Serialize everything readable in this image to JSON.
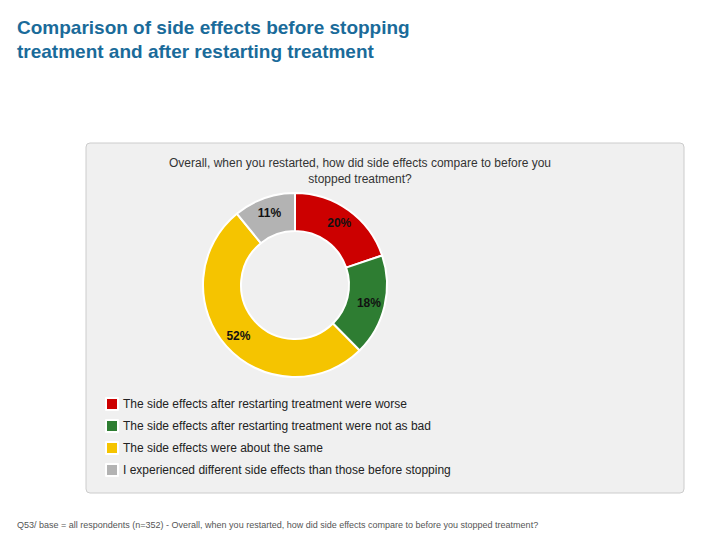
{
  "chart_data": {
    "type": "pie",
    "title": "Comparison of side effects before stopping\ntreatment and after restarting treatment",
    "subtitle": "Overall, when you restarted, how did side effects compare to before you\nstopped treatment?",
    "categories": [
      "The side effects after restarting treatment were worse",
      "The side effects after restarting treatment were not as bad",
      "The side effects were about the same",
      "I experienced different side effects than those before stopping"
    ],
    "values": [
      20,
      18,
      52,
      11
    ],
    "value_labels": [
      "20%",
      "18%",
      "52%",
      "11%"
    ],
    "colors": [
      "#cc0000",
      "#2e7d32",
      "#f5c400",
      "#b3b3b3"
    ],
    "data_labels": true,
    "legend": "lower left",
    "annotations": [
      "Q53/ base = all respondents (n=352) - Overall, when you restarted, how did side effects compare to before you stopped treatment?"
    ]
  }
}
